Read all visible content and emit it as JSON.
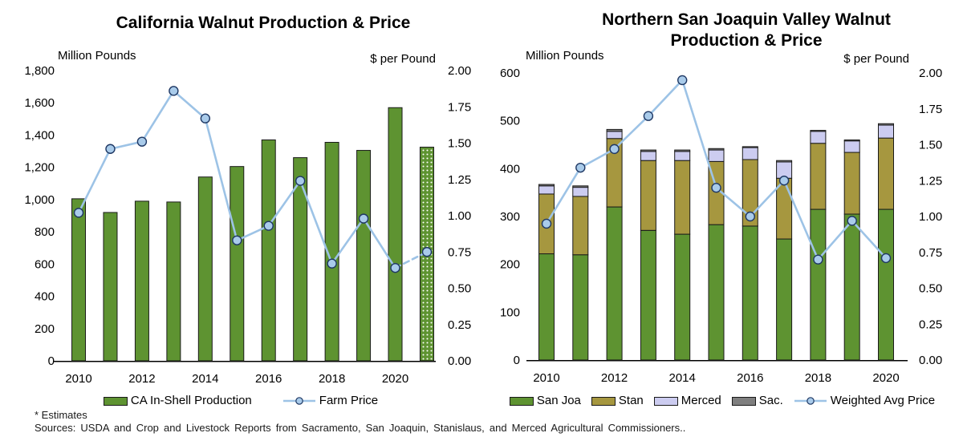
{
  "page": {
    "background": "#ffffff"
  },
  "colors": {
    "bar_green": "#5E9331",
    "bar_olive": "#A6973F",
    "bar_lavender": "#CCCCF0",
    "bar_gray": "#7F7F7F",
    "bar_border": "#1a1a1a",
    "price_line": "#9DC3E6",
    "marker_fill": "#A9CBEA",
    "marker_border": "#1F3864",
    "axis_line": "#000000",
    "text": "#000000"
  },
  "footnotes": {
    "estimates": "* Estimates",
    "sources": "Sources: USDA and Crop and Livestock Reports from Sacramento, San Joaquin, Stanislaus, and Merced Agricultural Commissioners.."
  },
  "chart_data": [
    {
      "type": "bar",
      "title": "California Walnut Production & Price",
      "left_axis_title": "Million Pounds",
      "right_axis_title": "$ per Pound",
      "categories": [
        "2010",
        "2011",
        "2012",
        "2013",
        "2014",
        "2015",
        "2016",
        "2017",
        "2018",
        "2019",
        "2020",
        "2021"
      ],
      "x_tick_labels": [
        "2010",
        "2012",
        "2014",
        "2016",
        "2018",
        "2020"
      ],
      "left_ylim": [
        0,
        1800
      ],
      "left_tick_labels": [
        "0",
        "200",
        "400",
        "600",
        "800",
        "1,000",
        "1,200",
        "1,400",
        "1,600",
        "1,800"
      ],
      "right_ylim": [
        0,
        2
      ],
      "right_tick_labels": [
        "0.00",
        "0.25",
        "0.50",
        "0.75",
        "1.00",
        "1.25",
        "1.50",
        "1.75",
        "2.00"
      ],
      "grid": "off",
      "legend_position": "bottom",
      "series": [
        {
          "name": "CA In-Shell Production",
          "kind": "bar",
          "axis": "left",
          "color_key": "bar_green",
          "values": [
            1005,
            920,
            990,
            985,
            1140,
            1205,
            1370,
            1260,
            1355,
            1305,
            1570,
            1325
          ],
          "last_bar_pattern": "white-dots",
          "last_is_estimate": true
        },
        {
          "name": "Farm Price",
          "kind": "line",
          "axis": "right",
          "color_key": "price_line",
          "values": [
            1.02,
            1.46,
            1.51,
            1.86,
            1.67,
            0.83,
            0.93,
            1.24,
            0.67,
            0.98,
            0.64,
            0.75
          ],
          "last_segment_dashed": true,
          "last_is_estimate": true
        }
      ]
    },
    {
      "type": "stacked-bar",
      "title": "Northern San Joaquin Valley Walnut Production & Price",
      "left_axis_title": "Million Pounds",
      "right_axis_title": "$ per Pound",
      "categories": [
        "2010",
        "2011",
        "2012",
        "2013",
        "2014",
        "2015",
        "2016",
        "2017",
        "2018",
        "2019",
        "2020"
      ],
      "x_tick_labels": [
        "2010",
        "2012",
        "2014",
        "2016",
        "2018",
        "2020"
      ],
      "left_ylim": [
        0,
        600
      ],
      "left_tick_labels": [
        "0",
        "100",
        "200",
        "300",
        "400",
        "500",
        "600"
      ],
      "right_ylim": [
        0,
        2
      ],
      "right_tick_labels": [
        "0.00",
        "0.25",
        "0.50",
        "0.75",
        "1.00",
        "1.25",
        "1.50",
        "1.75",
        "2.00"
      ],
      "grid": "off",
      "legend_position": "bottom",
      "series": [
        {
          "name": "San Joa",
          "kind": "bar",
          "axis": "left",
          "color_key": "bar_green",
          "values": [
            222,
            220,
            320,
            271,
            263,
            283,
            280,
            253,
            315,
            305,
            315
          ]
        },
        {
          "name": "Stan",
          "kind": "bar",
          "axis": "left",
          "color_key": "bar_olive",
          "values": [
            125,
            122,
            143,
            146,
            154,
            132,
            139,
            127,
            138,
            129,
            149
          ]
        },
        {
          "name": "Merced",
          "kind": "bar",
          "axis": "left",
          "color_key": "bar_lavender",
          "values": [
            17,
            19,
            15,
            19,
            19,
            24,
            25,
            34,
            25,
            24,
            27
          ]
        },
        {
          "name": "Sac.",
          "kind": "bar",
          "axis": "left",
          "color_key": "bar_gray",
          "values": [
            3,
            3,
            4,
            3,
            3,
            3,
            2,
            3,
            2,
            2,
            3
          ]
        },
        {
          "name": "Weighted Avg Price",
          "kind": "line",
          "axis": "right",
          "color_key": "price_line",
          "values": [
            0.95,
            1.34,
            1.47,
            1.7,
            1.95,
            1.2,
            1.0,
            1.25,
            0.7,
            0.97,
            0.71
          ]
        }
      ]
    }
  ]
}
